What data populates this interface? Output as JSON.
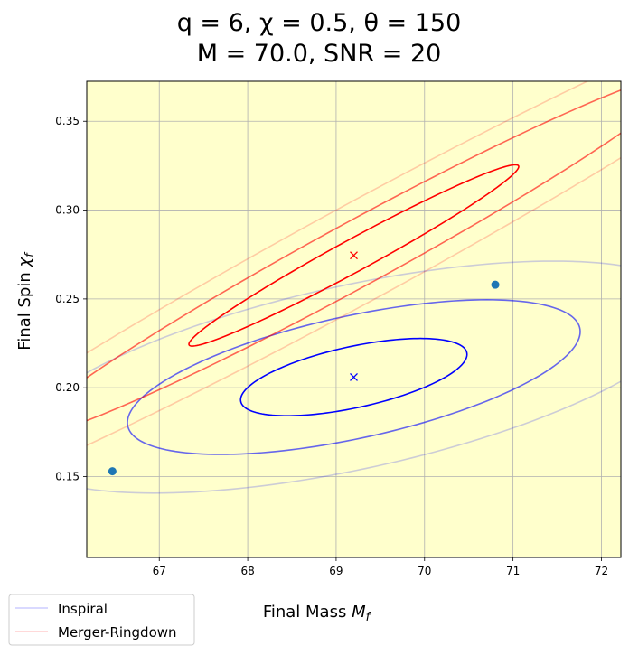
{
  "chart_data": {
    "type": "scatter",
    "title_line1": "q = 6, χ = 0.5, θ = 150",
    "title_line2": "M = 70.0, SNR = 20",
    "xlabel": "Final Mass",
    "xlabel_sym": "M",
    "xlabel_sub": "f",
    "ylabel": "Final Spin",
    "ylabel_sym": "χ",
    "ylabel_sub": "f",
    "xlim": [
      66.18,
      72.22
    ],
    "ylim": [
      0.1045,
      0.3725
    ],
    "x_ticks": [
      67,
      68,
      69,
      70,
      71,
      72
    ],
    "y_ticks": [
      0.15,
      0.2,
      0.25,
      0.3,
      0.35
    ],
    "y_tick_labels": [
      "0.15",
      "0.20",
      "0.25",
      "0.30",
      "0.35"
    ],
    "grid": true,
    "background": "#ffffcc",
    "legend": [
      {
        "label": "Inspiral",
        "color": "#0000ff"
      },
      {
        "label": "Merger-Ringdown",
        "color": "#ff0000"
      }
    ],
    "legend_location": "lower-left",
    "series": [
      {
        "name": "Inspiral",
        "color": "#0000ff",
        "center": [
          69.2,
          0.206
        ],
        "marker": "x",
        "ellipses": [
          {
            "sigma": 1,
            "rx": 1.28,
            "ry": 0.0176,
            "angle": 0.01,
            "alpha": 1.0
          },
          {
            "sigma": 2,
            "rx": 2.56,
            "ry": 0.0352,
            "angle": 0.01,
            "alpha": 0.6
          },
          {
            "sigma": 3,
            "rx": 3.84,
            "ry": 0.0528,
            "angle": 0.01,
            "alpha": 0.2
          }
        ]
      },
      {
        "name": "Merger-Ringdown",
        "color": "#ff0000",
        "center": [
          69.2,
          0.2745
        ],
        "marker": "x",
        "ellipses": [
          {
            "sigma": 1,
            "rx": 1.865,
            "ry": 0.0103,
            "angle": 0.0268,
            "alpha": 1.0
          },
          {
            "sigma": 2,
            "rx": 3.73,
            "ry": 0.0206,
            "angle": 0.0268,
            "alpha": 0.6
          },
          {
            "sigma": 3,
            "rx": 5.595,
            "ry": 0.0309,
            "angle": 0.0268,
            "alpha": 0.2
          }
        ]
      }
    ],
    "points": [
      {
        "x": 66.47,
        "y": 0.153,
        "color": "#1f77b4"
      },
      {
        "x": 70.8,
        "y": 0.258,
        "color": "#1f77b4"
      }
    ]
  }
}
